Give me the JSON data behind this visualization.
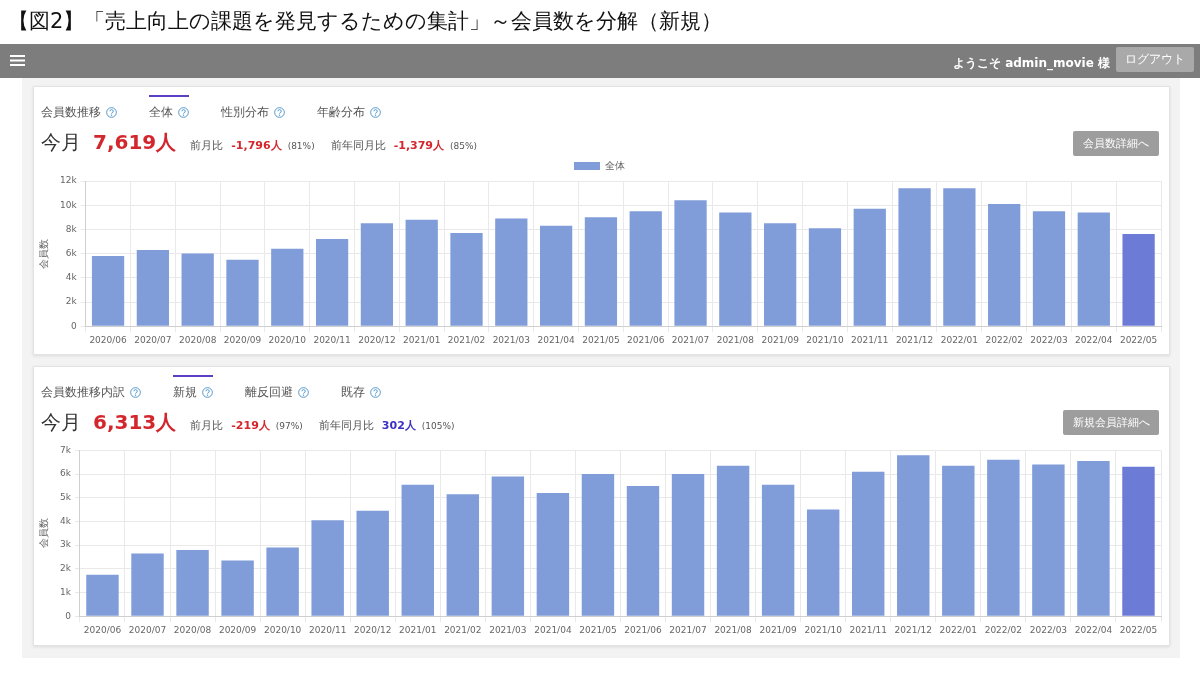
{
  "chart_data": [
    {
      "type": "bar",
      "title": "【図2】「売上向上の課題を発見するための集計」～会員数を分解（新規）",
      "ylabel": "会員数",
      "categories": [
        "2020/06",
        "2020/07",
        "2020/08",
        "2020/09",
        "2020/10",
        "2020/11",
        "2020/12",
        "2021/01",
        "2021/02",
        "2021/03",
        "2021/04",
        "2021/05",
        "2021/06",
        "2021/07",
        "2021/08",
        "2021/09",
        "2021/10",
        "2021/11",
        "2021/12",
        "2022/01",
        "2022/02",
        "2022/03",
        "2022/04",
        "2022/05"
      ],
      "series": [
        {
          "name": "全体",
          "colors": [
            "#809cd9",
            "#809cd9",
            "#809cd9",
            "#809cd9",
            "#809cd9",
            "#809cd9",
            "#809cd9",
            "#809cd9",
            "#809cd9",
            "#809cd9",
            "#809cd9",
            "#809cd9",
            "#809cd9",
            "#809cd9",
            "#809cd9",
            "#809cd9",
            "#809cd9",
            "#809cd9",
            "#809cd9",
            "#809cd9",
            "#809cd9",
            "#809cd9",
            "#809cd9",
            "#6c7cd6"
          ],
          "values": [
            5800,
            6300,
            6000,
            5500,
            6400,
            7200,
            8500,
            8800,
            7700,
            8900,
            8300,
            9000,
            9500,
            10400,
            9400,
            8500,
            8100,
            9700,
            11400,
            11400,
            10100,
            9500,
            9400,
            7619
          ]
        }
      ],
      "ylim": [
        0,
        12000
      ],
      "yticks": [
        0,
        {
          "value": 2000,
          "label": "2k"
        },
        {
          "value": 4000,
          "label": "4k"
        },
        {
          "value": 6000,
          "label": "6k"
        },
        {
          "value": 8000,
          "label": "8k"
        },
        {
          "value": 10000,
          "label": "10k"
        },
        {
          "value": 12000,
          "label": "12k"
        }
      ],
      "grid": true,
      "legend": "top",
      "annotations": [
        "ようこそ admin_movie 様",
        "ログアウト",
        "会員数推移",
        "全体",
        "性別分布",
        "年齢分布",
        "今月",
        "7,619人",
        "前月比",
        "-1,796人",
        "(81%)",
        "前年同月比",
        "-1,379人",
        "(85%)",
        "会員数詳細へ"
      ]
    },
    {
      "type": "bar",
      "ylabel": "会員数",
      "categories": [
        "2020/06",
        "2020/07",
        "2020/08",
        "2020/09",
        "2020/10",
        "2020/11",
        "2020/12",
        "2021/01",
        "2021/02",
        "2021/03",
        "2021/04",
        "2021/05",
        "2021/06",
        "2021/07",
        "2021/08",
        "2021/09",
        "2021/10",
        "2021/11",
        "2021/12",
        "2022/01",
        "2022/02",
        "2022/03",
        "2022/04",
        "2022/05"
      ],
      "values": [
        1750,
        2650,
        2800,
        2350,
        2900,
        4050,
        4450,
        5550,
        5150,
        5900,
        5200,
        6000,
        5500,
        6000,
        6350,
        5550,
        4500,
        6100,
        6800,
        6350,
        6600,
        6400,
        6550,
        6313
      ],
      "colors": [
        "#809cd9",
        "#809cd9",
        "#809cd9",
        "#809cd9",
        "#809cd9",
        "#809cd9",
        "#809cd9",
        "#809cd9",
        "#809cd9",
        "#809cd9",
        "#809cd9",
        "#809cd9",
        "#809cd9",
        "#809cd9",
        "#809cd9",
        "#809cd9",
        "#809cd9",
        "#809cd9",
        "#809cd9",
        "#809cd9",
        "#809cd9",
        "#809cd9",
        "#809cd9",
        "#6c7cd6"
      ],
      "ylim": [
        0,
        7000
      ],
      "yticks": [
        0,
        {
          "value": 1000,
          "label": "1k"
        },
        {
          "value": 2000,
          "label": "2k"
        },
        {
          "value": 3000,
          "label": "3k"
        },
        {
          "value": 4000,
          "label": "4k"
        },
        {
          "value": 5000,
          "label": "5k"
        },
        {
          "value": 6000,
          "label": "6k"
        },
        {
          "value": 7000,
          "label": "7k"
        }
      ],
      "grid": true,
      "annotations": [
        "会員数推移内訳",
        "新規",
        "離反回避",
        "既存",
        "今月",
        "6,313人",
        "前月比",
        "-219人",
        "(97%)",
        "前年同月比",
        "302人",
        "(105%)",
        "新規会員詳細へ"
      ]
    }
  ]
}
